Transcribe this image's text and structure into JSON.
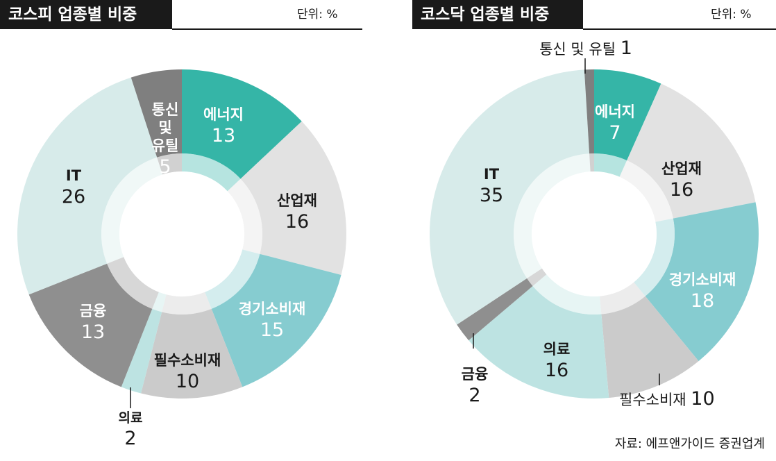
{
  "unit_label": "단위: %",
  "source": "자료: 에프앤가이드 증권업계",
  "chart_data": [
    {
      "type": "pie",
      "title": "코스피 업종별 비중",
      "unit": "%",
      "slices": [
        {
          "label": "에너지",
          "value": 13,
          "color": "#35b5a7",
          "label_color": "#ffffff"
        },
        {
          "label": "산업재",
          "value": 16,
          "color": "#e2e2e2",
          "label_color": "#1a1a1a"
        },
        {
          "label": "경기소비재",
          "value": 15,
          "color": "#86ccd0",
          "label_color": "#ffffff"
        },
        {
          "label": "필수소비재",
          "value": 10,
          "color": "#cbcbcb",
          "label_color": "#1a1a1a"
        },
        {
          "label": "의료",
          "value": 2,
          "color": "#bde3e2",
          "label_color": "#1a1a1a"
        },
        {
          "label": "금융",
          "value": 13,
          "color": "#8f8f8f",
          "label_color": "#ffffff"
        },
        {
          "label": "IT",
          "value": 26,
          "color": "#d7ebea",
          "label_color": "#1a1a1a"
        },
        {
          "label": "통신 및 유틸",
          "value": 5,
          "color": "#7f7f7f",
          "label_color": "#ffffff"
        }
      ]
    },
    {
      "type": "pie",
      "title": "코스닥 업종별 비중",
      "unit": "%",
      "slices": [
        {
          "label": "에너지",
          "value": 7,
          "color": "#35b5a7",
          "label_color": "#ffffff"
        },
        {
          "label": "산업재",
          "value": 16,
          "color": "#e2e2e2",
          "label_color": "#1a1a1a"
        },
        {
          "label": "경기소비재",
          "value": 18,
          "color": "#86ccd0",
          "label_color": "#ffffff"
        },
        {
          "label": "필수소비재",
          "value": 10,
          "color": "#cbcbcb",
          "label_color": "#1a1a1a"
        },
        {
          "label": "의료",
          "value": 16,
          "color": "#bde3e2",
          "label_color": "#1a1a1a"
        },
        {
          "label": "금융",
          "value": 2,
          "color": "#8f8f8f",
          "label_color": "#1a1a1a"
        },
        {
          "label": "IT",
          "value": 35,
          "color": "#d7ebea",
          "label_color": "#1a1a1a"
        },
        {
          "label": "통신 및 유틸",
          "value": 1,
          "color": "#7f7f7f",
          "label_color": "#1a1a1a"
        }
      ]
    }
  ]
}
